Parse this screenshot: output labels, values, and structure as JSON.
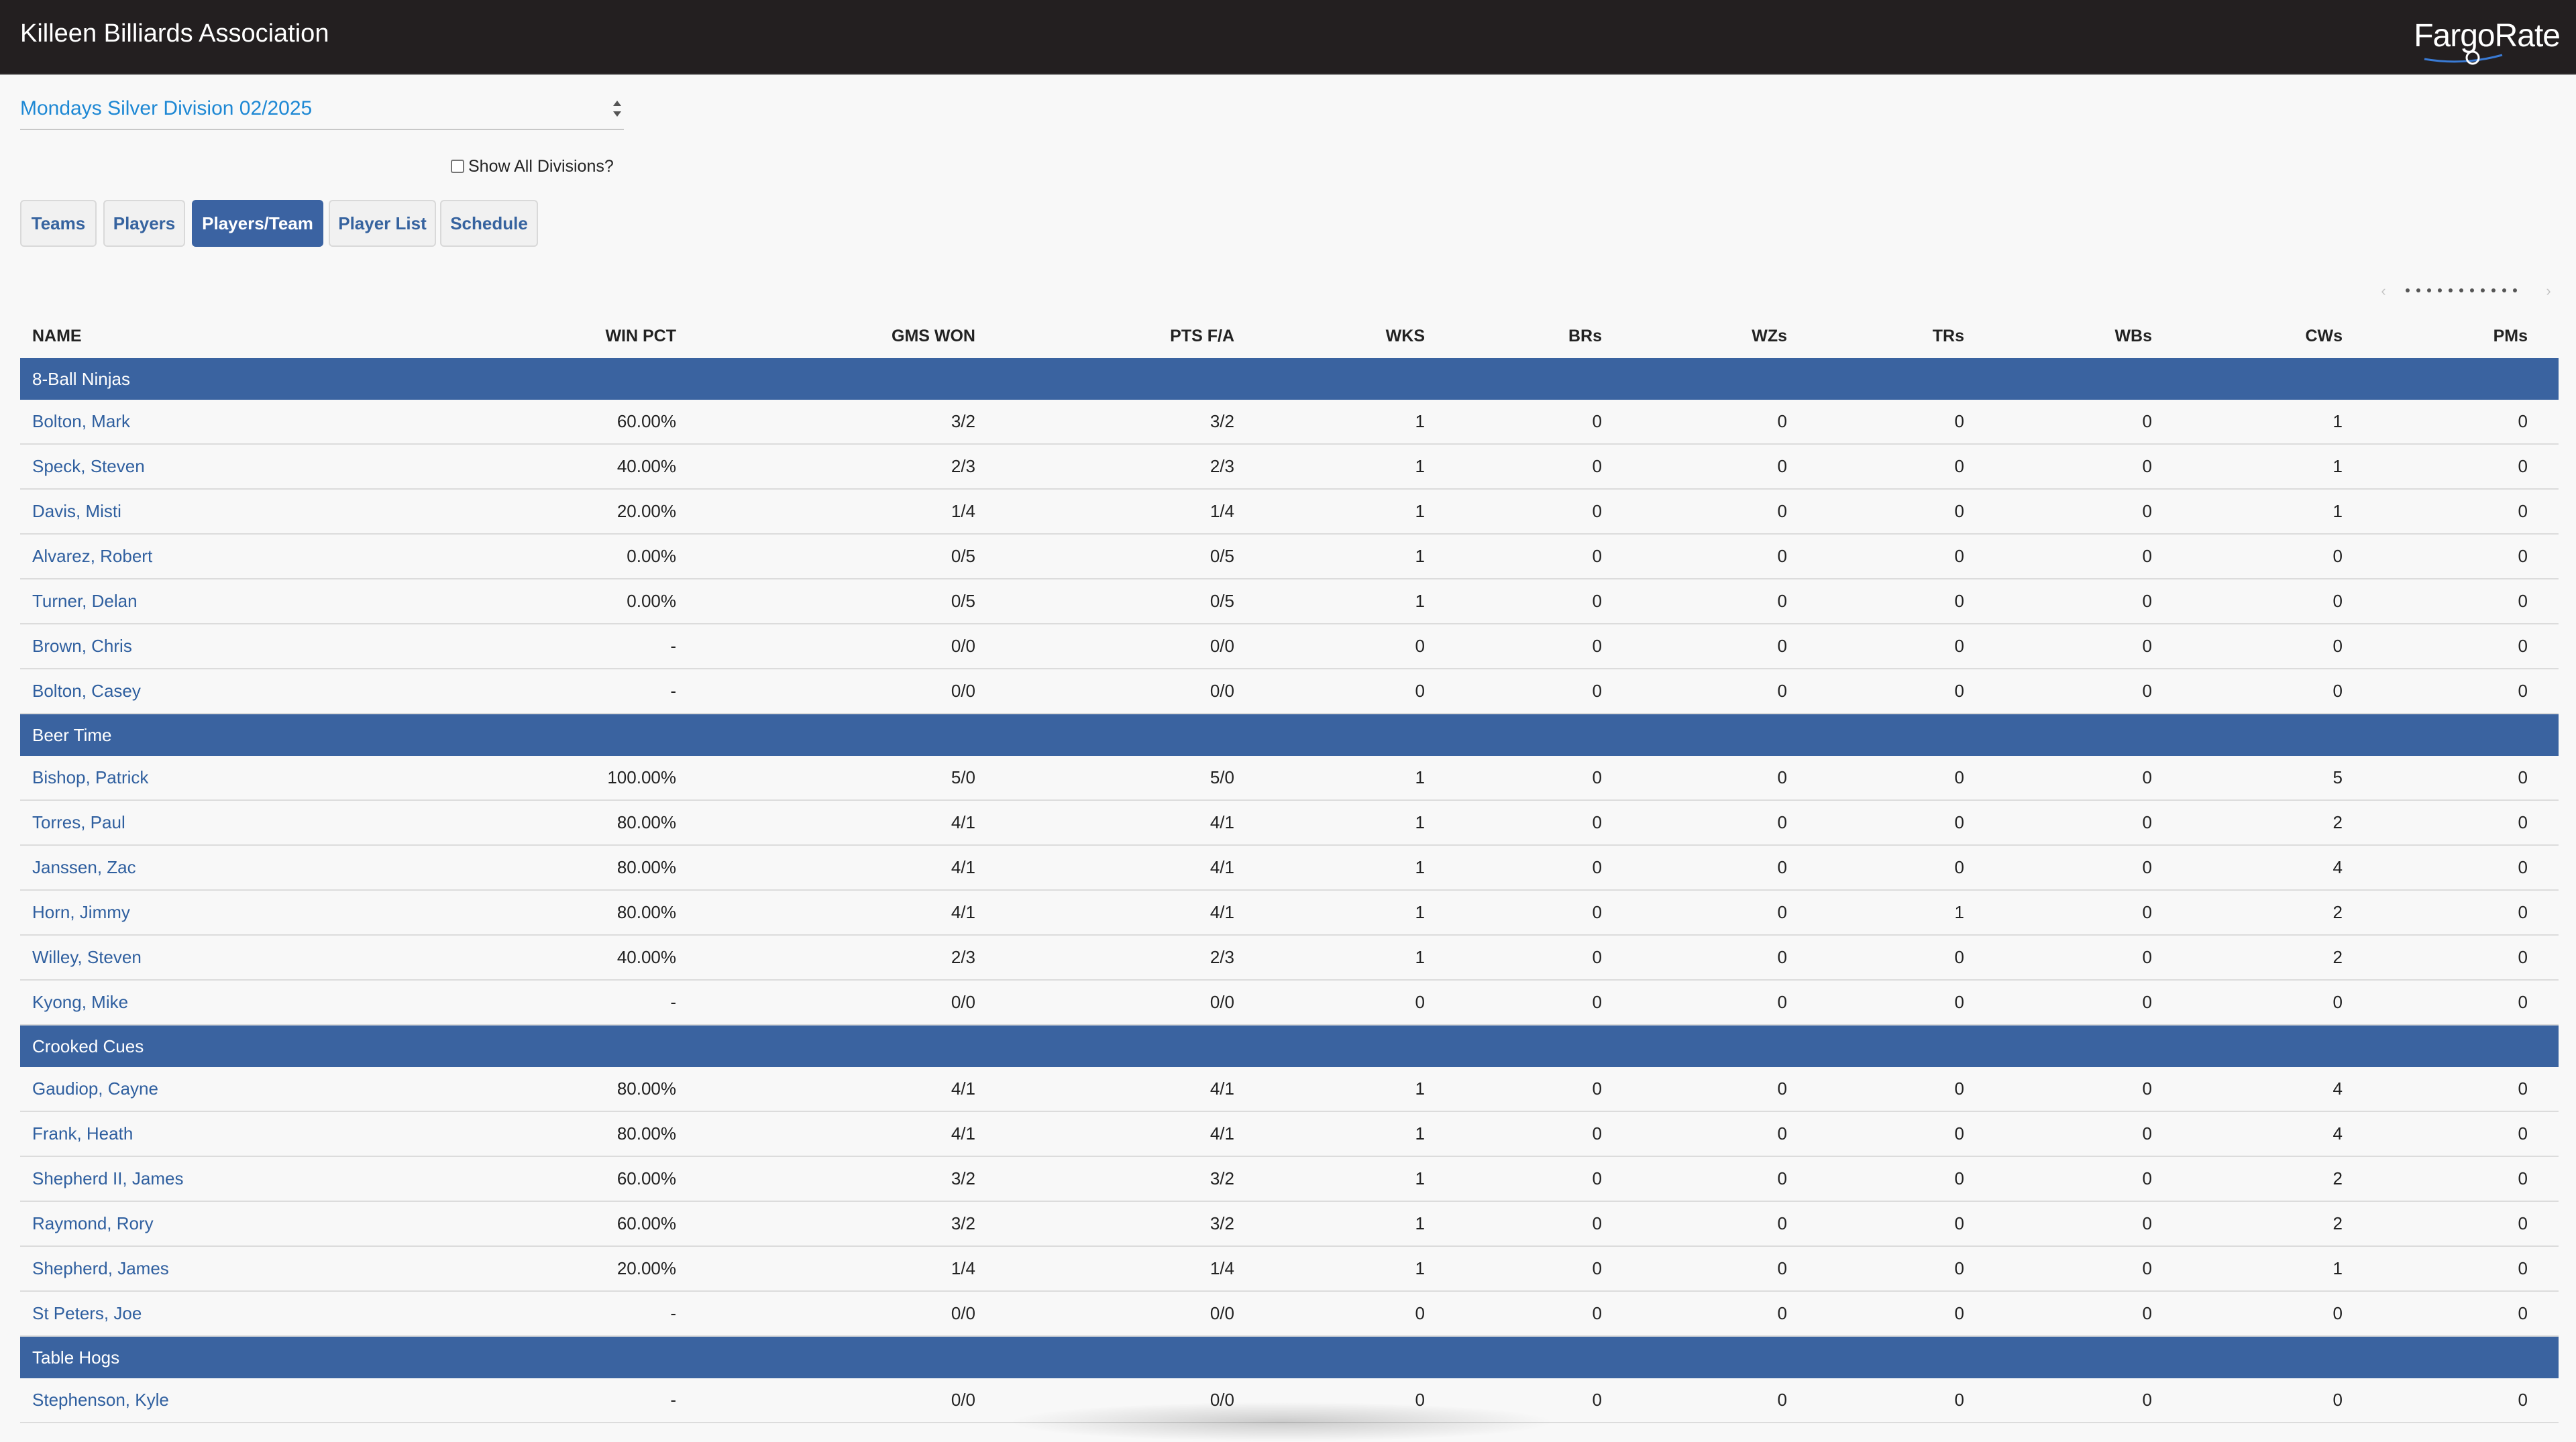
{
  "header": {
    "title": "Killeen Billiards Association",
    "logo": "FargoRate"
  },
  "division": {
    "selected": "Mondays Silver Division 02/2025"
  },
  "show_all": {
    "label": "Show All Divisions?",
    "checked": false
  },
  "tabs": [
    {
      "label": "Teams",
      "active": false
    },
    {
      "label": "Players",
      "active": false
    },
    {
      "label": "Players/Team",
      "active": true
    },
    {
      "label": "Player List",
      "active": false
    },
    {
      "label": "Schedule",
      "active": false
    }
  ],
  "table": {
    "columns": [
      "NAME",
      "WIN PCT",
      "GMS WON",
      "PTS F/A",
      "WKS",
      "BRs",
      "WZs",
      "TRs",
      "WBs",
      "CWs",
      "PMs"
    ],
    "teams": [
      {
        "name": "8-Ball Ninjas",
        "players": [
          [
            "Bolton, Mark",
            "60.00%",
            "3/2",
            "3/2",
            "1",
            "0",
            "0",
            "0",
            "0",
            "1",
            "0"
          ],
          [
            "Speck, Steven",
            "40.00%",
            "2/3",
            "2/3",
            "1",
            "0",
            "0",
            "0",
            "0",
            "1",
            "0"
          ],
          [
            "Davis, Misti",
            "20.00%",
            "1/4",
            "1/4",
            "1",
            "0",
            "0",
            "0",
            "0",
            "1",
            "0"
          ],
          [
            "Alvarez, Robert",
            "0.00%",
            "0/5",
            "0/5",
            "1",
            "0",
            "0",
            "0",
            "0",
            "0",
            "0"
          ],
          [
            "Turner, Delan",
            "0.00%",
            "0/5",
            "0/5",
            "1",
            "0",
            "0",
            "0",
            "0",
            "0",
            "0"
          ],
          [
            "Brown, Chris",
            "-",
            "0/0",
            "0/0",
            "0",
            "0",
            "0",
            "0",
            "0",
            "0",
            "0"
          ],
          [
            "Bolton, Casey",
            "-",
            "0/0",
            "0/0",
            "0",
            "0",
            "0",
            "0",
            "0",
            "0",
            "0"
          ]
        ]
      },
      {
        "name": "Beer Time",
        "players": [
          [
            "Bishop, Patrick",
            "100.00%",
            "5/0",
            "5/0",
            "1",
            "0",
            "0",
            "0",
            "0",
            "5",
            "0"
          ],
          [
            "Torres, Paul",
            "80.00%",
            "4/1",
            "4/1",
            "1",
            "0",
            "0",
            "0",
            "0",
            "2",
            "0"
          ],
          [
            "Janssen, Zac",
            "80.00%",
            "4/1",
            "4/1",
            "1",
            "0",
            "0",
            "0",
            "0",
            "4",
            "0"
          ],
          [
            "Horn, Jimmy",
            "80.00%",
            "4/1",
            "4/1",
            "1",
            "0",
            "0",
            "1",
            "0",
            "2",
            "0"
          ],
          [
            "Willey, Steven",
            "40.00%",
            "2/3",
            "2/3",
            "1",
            "0",
            "0",
            "0",
            "0",
            "2",
            "0"
          ],
          [
            "Kyong, Mike",
            "-",
            "0/0",
            "0/0",
            "0",
            "0",
            "0",
            "0",
            "0",
            "0",
            "0"
          ]
        ]
      },
      {
        "name": "Crooked Cues",
        "players": [
          [
            "Gaudiop, Cayne",
            "80.00%",
            "4/1",
            "4/1",
            "1",
            "0",
            "0",
            "0",
            "0",
            "4",
            "0"
          ],
          [
            "Frank, Heath",
            "80.00%",
            "4/1",
            "4/1",
            "1",
            "0",
            "0",
            "0",
            "0",
            "4",
            "0"
          ],
          [
            "Shepherd II, James",
            "60.00%",
            "3/2",
            "3/2",
            "1",
            "0",
            "0",
            "0",
            "0",
            "2",
            "0"
          ],
          [
            "Raymond, Rory",
            "60.00%",
            "3/2",
            "3/2",
            "1",
            "0",
            "0",
            "0",
            "0",
            "2",
            "0"
          ],
          [
            "Shepherd, James",
            "20.00%",
            "1/4",
            "1/4",
            "1",
            "0",
            "0",
            "0",
            "0",
            "1",
            "0"
          ],
          [
            "St Peters, Joe",
            "-",
            "0/0",
            "0/0",
            "0",
            "0",
            "0",
            "0",
            "0",
            "0",
            "0"
          ]
        ]
      },
      {
        "name": "Table Hogs",
        "players": [
          [
            "Stephenson, Kyle",
            "-",
            "0/0",
            "0/0",
            "0",
            "0",
            "0",
            "0",
            "0",
            "0",
            "0"
          ]
        ]
      }
    ]
  }
}
